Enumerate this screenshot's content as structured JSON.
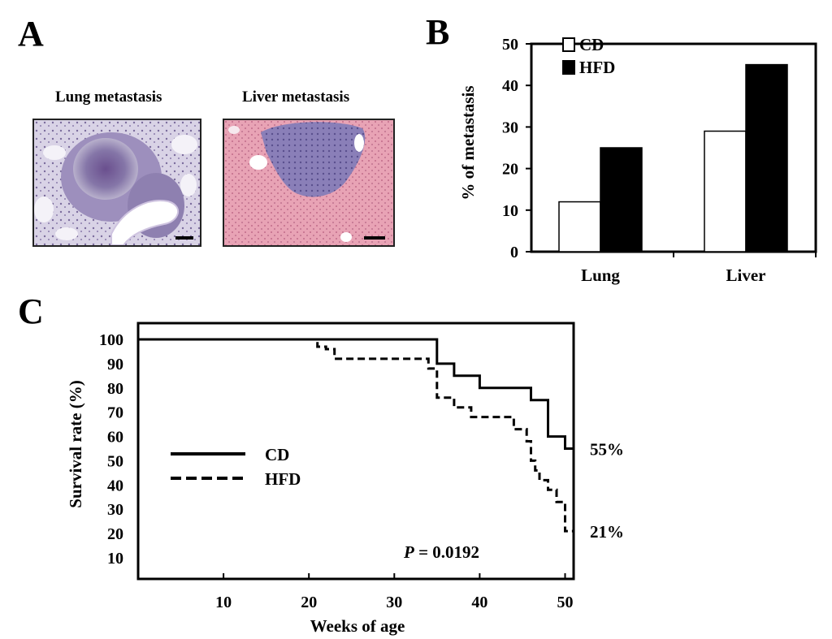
{
  "panel_labels": {
    "a": "A",
    "b": "B",
    "c": "C"
  },
  "panel_a": {
    "images": [
      {
        "title": "Lung metastasis",
        "description_icon": "lung-histology-image"
      },
      {
        "title": "Liver metastasis",
        "description_icon": "liver-histology-image"
      }
    ]
  },
  "chart_data": [
    {
      "id": "B",
      "type": "bar",
      "categories": [
        "Lung",
        "Liver"
      ],
      "series": [
        {
          "name": "CD",
          "values": [
            12,
            29
          ],
          "color": "#ffffff"
        },
        {
          "name": "HFD",
          "values": [
            25,
            45
          ],
          "color": "#000000"
        }
      ],
      "ylabel": "% of metastasis",
      "xlabel": "",
      "ylim": [
        0,
        50
      ],
      "yticks": [
        0,
        10,
        20,
        30,
        40,
        50
      ],
      "legend_position": "top-left",
      "grid": false
    },
    {
      "id": "C",
      "type": "line",
      "title": "",
      "xlabel": "Weeks of age",
      "ylabel": "Survival rate (%)",
      "xlim": [
        0,
        51
      ],
      "ylim": [
        0,
        100
      ],
      "xticks": [
        10,
        20,
        30,
        40,
        50
      ],
      "yticks": [
        10,
        20,
        30,
        40,
        50,
        60,
        70,
        80,
        90,
        100
      ],
      "grid": false,
      "legend_position": "middle-left",
      "series": [
        {
          "name": "CD",
          "style": "solid",
          "x": [
            0,
            35,
            35,
            37,
            37,
            40,
            40,
            46,
            46,
            48,
            48,
            50,
            50,
            51
          ],
          "y": [
            100,
            100,
            90,
            90,
            85,
            85,
            80,
            80,
            75,
            75,
            60,
            60,
            55,
            55
          ],
          "end_label": "55%"
        },
        {
          "name": "HFD",
          "style": "dashed",
          "x": [
            0,
            21,
            21,
            22,
            22,
            23,
            23,
            34,
            34,
            35,
            35,
            37,
            37,
            39,
            39,
            44,
            44,
            45.5,
            45.5,
            46,
            46,
            46.5,
            46.5,
            47,
            47,
            48,
            48,
            49,
            49,
            50,
            50,
            51
          ],
          "y": [
            100,
            100,
            97,
            97,
            96,
            96,
            92,
            92,
            88,
            88,
            76,
            76,
            72,
            72,
            68,
            68,
            63,
            63,
            58,
            58,
            50,
            50,
            46,
            46,
            42,
            42,
            38,
            38,
            33,
            33,
            21,
            21
          ],
          "end_label": "21%"
        }
      ],
      "annotation": {
        "italic": "P",
        "text": "= 0.0192"
      }
    }
  ]
}
